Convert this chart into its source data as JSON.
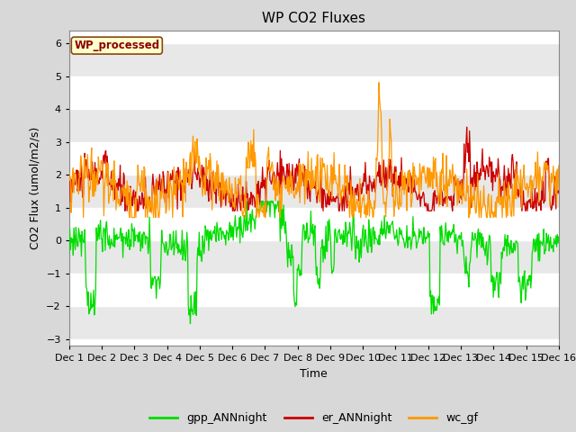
{
  "title": "WP CO2 Fluxes",
  "xlabel": "Time",
  "ylabel": "CO2 Flux (umol/m2/s)",
  "ylim": [
    -3.2,
    6.4
  ],
  "yticks": [
    -3.0,
    -2.0,
    -1.0,
    0.0,
    1.0,
    2.0,
    3.0,
    4.0,
    5.0,
    6.0
  ],
  "n_days": 15,
  "pts_per_day": 48,
  "xtick_positions": [
    0,
    1,
    2,
    3,
    4,
    5,
    6,
    7,
    8,
    9,
    10,
    11,
    12,
    13,
    14,
    15
  ],
  "xtick_labels": [
    "Dec 1",
    "Dec 2",
    "Dec 3",
    "Dec 4",
    "Dec 5",
    "Dec 6",
    "Dec 7",
    "Dec 8",
    "Dec 9",
    "Dec 10",
    "Dec 11",
    "Dec 12",
    "Dec 13",
    "Dec 14",
    "Dec 15",
    "Dec 16"
  ],
  "line_green_label": "gpp_ANNnight",
  "line_red_label": "er_ANNnight",
  "line_orange_label": "wc_gf",
  "line_green_color": "#00dd00",
  "line_red_color": "#cc0000",
  "line_orange_color": "#ff9900",
  "line_width": 0.9,
  "fig_bg_color": "#d8d8d8",
  "plot_bg_color": "#ffffff",
  "legend_box_label": "WP_processed",
  "legend_box_bg": "#ffffcc",
  "legend_box_edge": "#8b4513",
  "legend_box_text": "#8b0000",
  "title_fontsize": 11,
  "axis_label_fontsize": 9,
  "tick_label_fontsize": 8
}
